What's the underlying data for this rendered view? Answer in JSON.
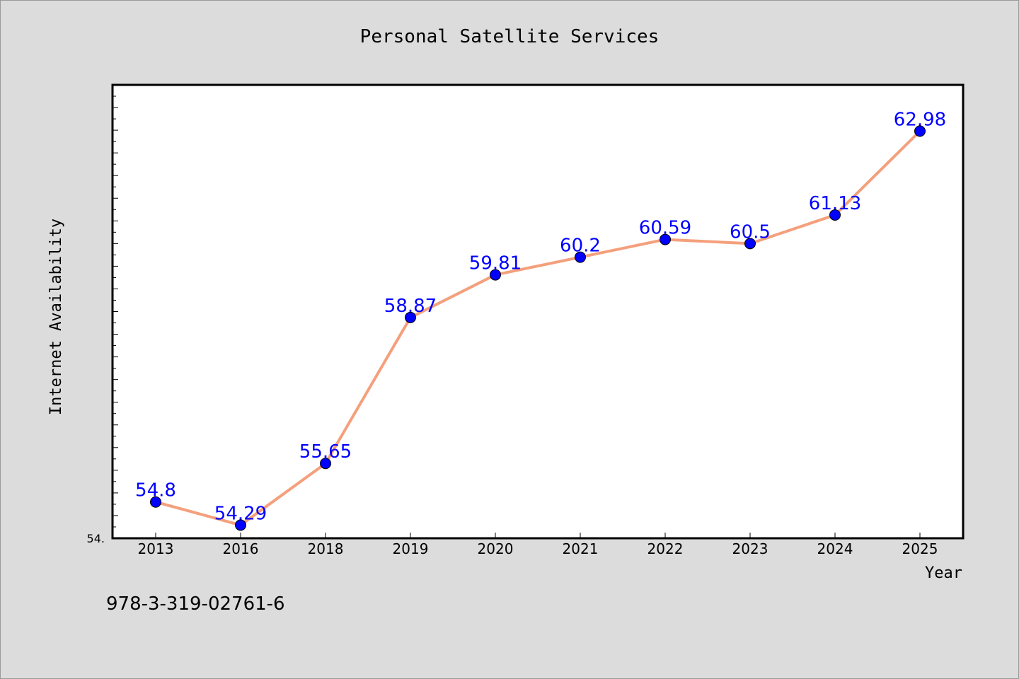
{
  "chart_data": {
    "type": "line",
    "title": "Personal Satellite Services",
    "xlabel": "Year",
    "ylabel": "Internet Availability",
    "categories": [
      "2013",
      "2016",
      "2018",
      "2019",
      "2020",
      "2021",
      "2022",
      "2023",
      "2024",
      "2025"
    ],
    "values": [
      54.8,
      54.29,
      55.65,
      58.87,
      59.81,
      60.2,
      60.59,
      60.5,
      61.13,
      62.98
    ],
    "data_labels": [
      "54.8",
      "54.29",
      "55.65",
      "58.87",
      "59.81",
      "60.2",
      "60.59",
      "60.5",
      "61.13",
      "62.98"
    ],
    "ylim": [
      54,
      64
    ],
    "y_tick_label": "54.",
    "grid": false,
    "line_color": "#f4a07c",
    "marker_color": "#0000ff",
    "label_color": "#0000ff",
    "frame_color": "#000000",
    "plot_background": "#ffffff"
  },
  "annotation": "978-3-319-02761-6"
}
